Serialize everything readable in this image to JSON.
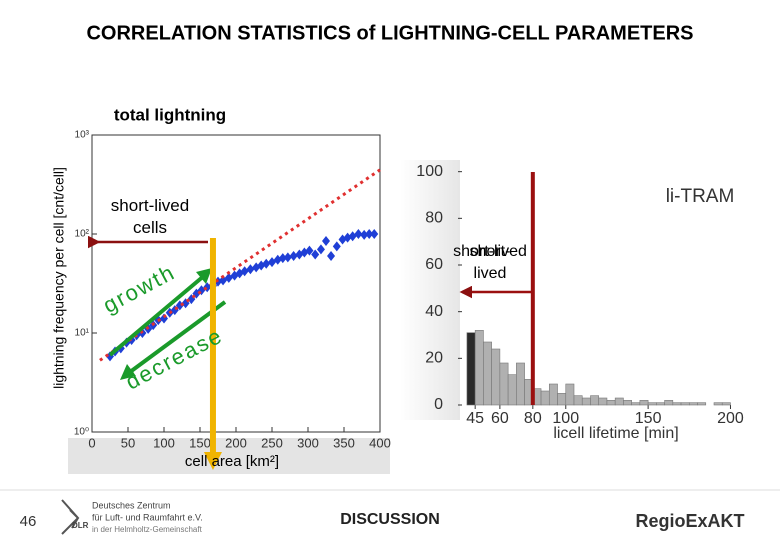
{
  "slide": {
    "title": "CORRELATION STATISTICS of LIGHTNING-CELL PARAMETERS",
    "page_number": "46",
    "logo_text": "DLR",
    "org_name_1": "Deutsches Zentrum",
    "org_name_2": "für Luft- und Raumfahrt e.V.",
    "org_name_3": "in der Helmholtz-Gemeinschaft",
    "section": "DISCUSSION",
    "project": "RegioExAKT"
  },
  "chart_data": [
    {
      "type": "scatter",
      "title": "total lightning",
      "x_label": "cell area [km²]",
      "y_label": "lightning frequency per cell [cnt/cell]",
      "log_y": true,
      "xlim": [
        0,
        400
      ],
      "ylim": [
        1,
        1000
      ],
      "xticks": [
        0,
        50,
        100,
        150,
        200,
        250,
        300,
        350,
        400
      ],
      "yticks": [
        {
          "value": 1,
          "label": "10⁰"
        },
        {
          "value": 10,
          "label": "10¹"
        },
        {
          "value": 100,
          "label": "10²"
        },
        {
          "value": 1000,
          "label": "10³"
        }
      ],
      "series": [
        {
          "color": "#1f3fd6",
          "mode": "markers",
          "x": [
            25,
            32,
            40,
            48,
            55,
            62,
            70,
            78,
            85,
            92,
            100,
            108,
            115,
            122,
            130,
            138,
            145,
            152,
            160,
            168,
            175,
            182,
            190,
            198,
            205,
            212,
            220,
            228,
            235,
            242,
            250,
            258,
            265,
            272,
            280,
            288,
            295,
            302,
            310,
            318,
            325,
            332,
            340,
            348,
            355,
            362,
            370,
            378,
            385,
            392
          ],
          "values": [
            5.8,
            6.5,
            7,
            8,
            8.5,
            9.5,
            10,
            11,
            12,
            13.5,
            14,
            16,
            17,
            19,
            20,
            22,
            25,
            27,
            29,
            30,
            33,
            34,
            36,
            38,
            40,
            42,
            44,
            46,
            48,
            50,
            52,
            55,
            57,
            58,
            60,
            62,
            65,
            68,
            62,
            70,
            85,
            60,
            75,
            88,
            92,
            95,
            100,
            98,
            100,
            100
          ]
        },
        {
          "color": "#e03030",
          "mode": "dotted-line",
          "x": [
            11,
            400
          ],
          "values": [
            5.3,
            445
          ]
        }
      ],
      "marker_x": 168,
      "marker_color": "#f0b400",
      "annotations": [
        "short-lived cells",
        "growth",
        "decrease"
      ]
    },
    {
      "type": "histogram",
      "title": "li-TRAM",
      "x_label": "licell lifetime [min]",
      "xlim": [
        37,
        224
      ],
      "ylim": [
        0,
        105
      ],
      "xticks": [
        45,
        60,
        80,
        100,
        150,
        200
      ],
      "yticks": [
        0,
        20,
        40,
        60,
        80,
        100
      ],
      "bins": [
        40,
        45,
        50,
        55,
        60,
        65,
        70,
        75,
        80,
        85,
        90,
        95,
        100,
        105,
        110,
        115,
        120,
        125,
        130,
        135,
        140,
        145,
        150,
        155,
        160,
        165,
        170,
        175,
        180,
        185,
        190,
        195,
        200
      ],
      "counts": [
        31,
        32,
        27,
        24,
        18,
        13,
        18,
        11,
        7,
        6,
        9,
        5,
        9,
        4,
        3,
        4,
        3,
        2,
        3,
        2,
        1,
        2,
        1,
        1,
        2,
        1,
        1,
        1,
        1,
        0,
        1,
        1
      ],
      "color": "#b0b0b0",
      "first_bar_color": "#2a2a2a",
      "marker_x": 80,
      "marker_color": "#9b1010",
      "annotations": [
        "short-lived"
      ]
    }
  ]
}
